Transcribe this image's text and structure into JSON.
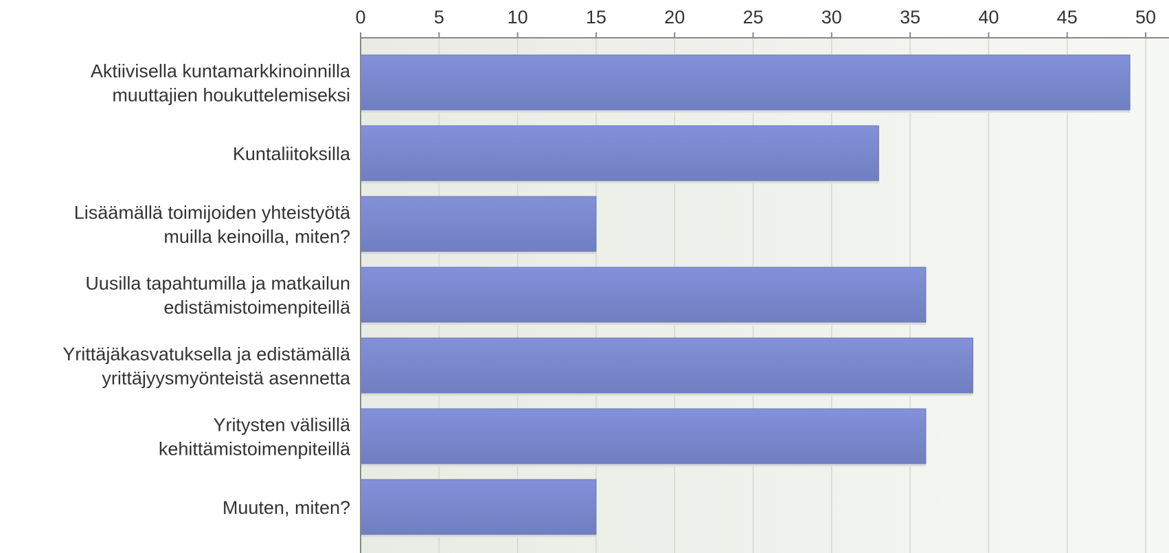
{
  "chart_data": {
    "type": "bar",
    "orientation": "horizontal",
    "title": "",
    "xlabel": "",
    "ylabel": "",
    "categories": [
      [
        "Aktiivisella kuntamarkkinoinnilla",
        "muuttajien houkuttelemiseksi"
      ],
      [
        "Kuntaliitoksilla"
      ],
      [
        "Lisäämällä toimijoiden yhteistyötä",
        "muilla keinoilla, miten?"
      ],
      [
        "Uusilla tapahtumilla ja matkailun",
        "edistämistoimenpiteillä"
      ],
      [
        "Yrittäjäkasvatuksella ja edistämällä",
        "yrittäjyysmyönteistä asennetta"
      ],
      [
        "Yritysten välisillä",
        "kehittämistoimenpiteillä"
      ],
      [
        "Muuten, miten?"
      ]
    ],
    "values": [
      49,
      33,
      15,
      36,
      39,
      36,
      15
    ],
    "xlim": [
      0,
      51
    ],
    "ticks": [
      0,
      5,
      10,
      15,
      20,
      25,
      30,
      35,
      40,
      45,
      50
    ],
    "axis_position": "top",
    "grid": true,
    "legend": "none",
    "colors": {
      "bar_top": "#8391d9",
      "bar_bottom": "#6f7fc0",
      "bar_shadow": "#dcdcdc",
      "plot_bg_left": "#e8ece4",
      "plot_bg_right": "#f6f8f4",
      "grid": "#d4d8d0",
      "axis": "#888888",
      "text": "#333333"
    }
  }
}
